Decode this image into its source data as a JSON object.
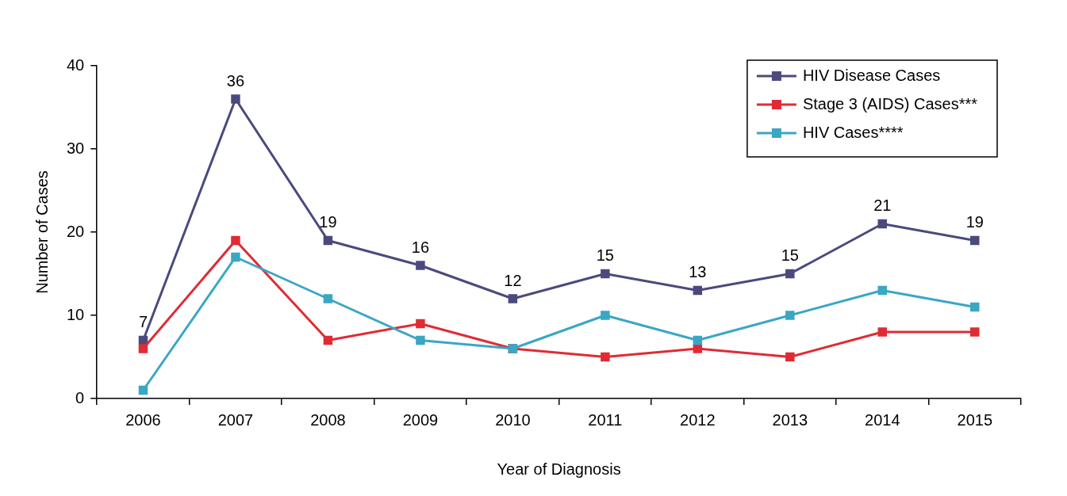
{
  "chart_data": {
    "type": "line",
    "xlabel": "Year of Diagnosis",
    "ylabel": "Number of Cases",
    "categories": [
      "2006",
      "2007",
      "2008",
      "2009",
      "2010",
      "2011",
      "2012",
      "2013",
      "2014",
      "2015"
    ],
    "series": [
      {
        "name": "HIV Disease Cases",
        "color": "#4a4a7e",
        "values": [
          7,
          36,
          19,
          16,
          12,
          15,
          13,
          15,
          21,
          19
        ],
        "value_labels": [
          "7",
          "36",
          "19",
          "16",
          "12",
          "15",
          "13",
          "15",
          "21",
          "19"
        ]
      },
      {
        "name": "Stage 3 (AIDS) Cases***",
        "color": "#e02b35",
        "values": [
          6,
          19,
          7,
          9,
          6,
          5,
          6,
          5,
          8,
          8
        ]
      },
      {
        "name": "HIV Cases****",
        "color": "#3aa7c4",
        "values": [
          1,
          17,
          12,
          7,
          6,
          10,
          7,
          10,
          13,
          11
        ]
      }
    ],
    "ylim": [
      0,
      40
    ],
    "yticks": [
      0,
      10,
      20,
      30,
      40
    ],
    "grid": false,
    "legend": "top right",
    "marker": "square",
    "line_style": "solid"
  }
}
